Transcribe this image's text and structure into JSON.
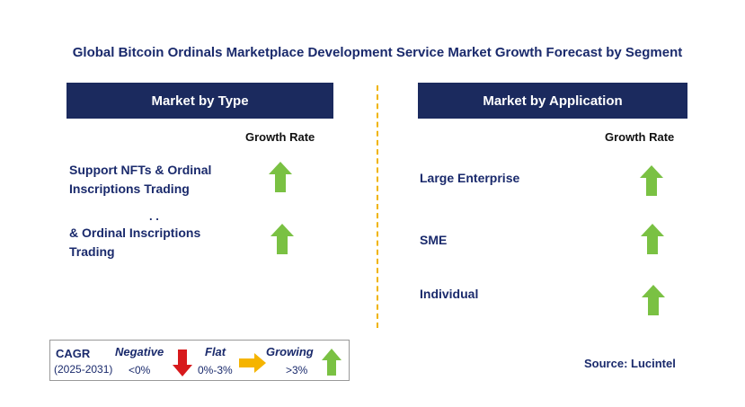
{
  "title": "Global Bitcoin Ordinals Marketplace Development Service Market Growth Forecast by Segment",
  "left_panel": {
    "header": "Market by Type",
    "growth_label": "Growth Rate",
    "items": [
      {
        "line1": "Support NFTs & Ordinal",
        "line2": "Inscriptions Trading",
        "trend": "growing"
      },
      {
        "line0": ". .",
        "line1": "& Ordinal Inscriptions",
        "line2": "Trading",
        "trend": "growing"
      }
    ]
  },
  "right_panel": {
    "header": "Market by Application",
    "growth_label": "Growth Rate",
    "items": [
      {
        "label": "Large Enterprise",
        "trend": "growing"
      },
      {
        "label": "SME",
        "trend": "growing"
      },
      {
        "label": "Individual",
        "trend": "growing"
      }
    ]
  },
  "legend": {
    "cagr": "CAGR",
    "period": "(2025-2031)",
    "negative_label": "Negative",
    "negative_range": "<0%",
    "flat_label": "Flat",
    "flat_range": "0%-3%",
    "growing_label": "Growing",
    "growing_range": ">3%"
  },
  "source": "Source: Lucintel",
  "colors": {
    "header_bg": "#1b2a5e",
    "text": "#1a2a6c",
    "growing": "#7ac143",
    "negative": "#d7191c",
    "flat": "#f5b400",
    "divider": "#f0b400"
  }
}
